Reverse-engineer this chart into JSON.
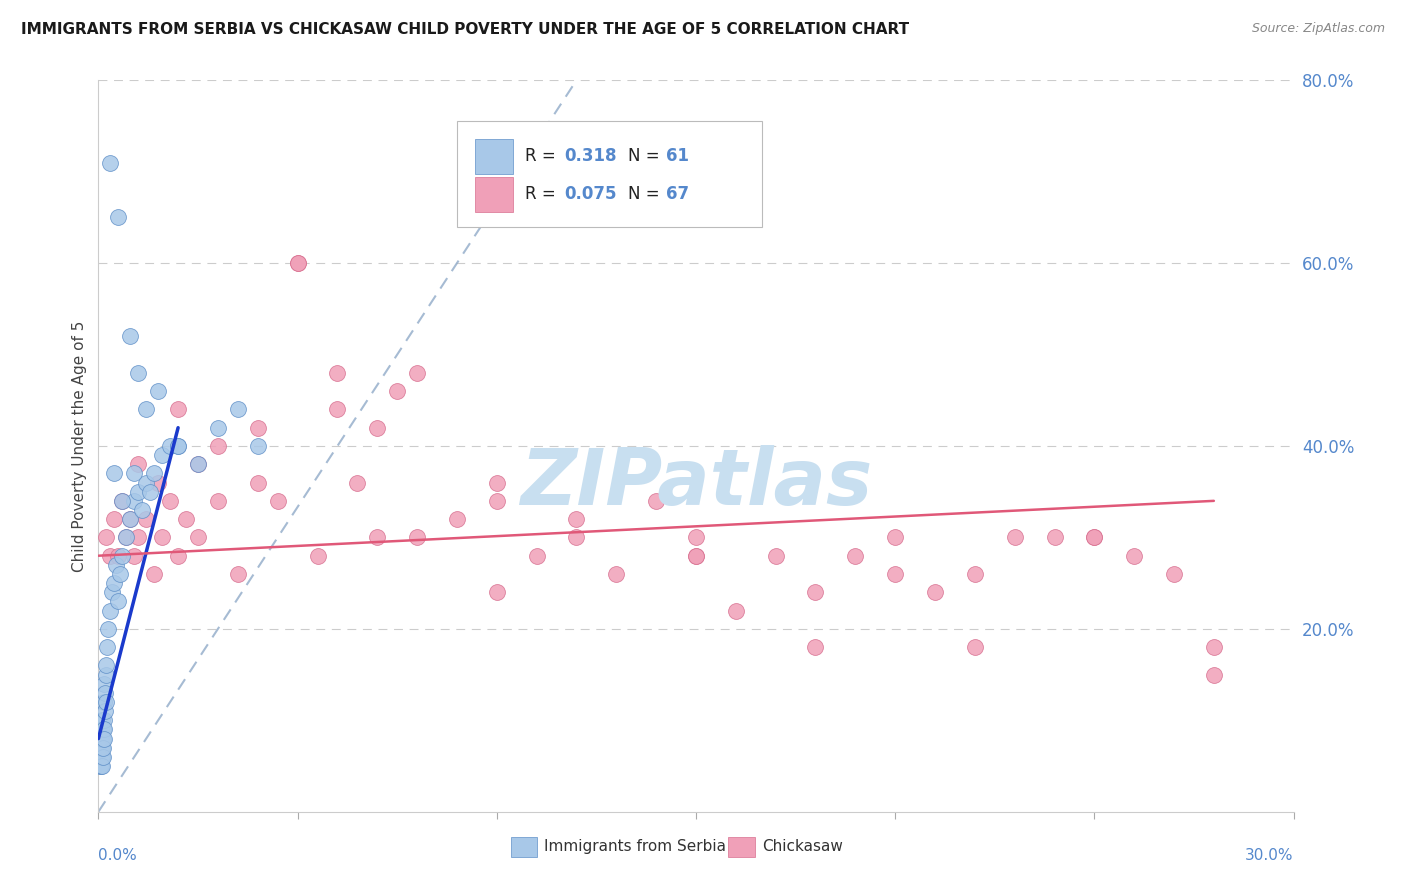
{
  "title": "IMMIGRANTS FROM SERBIA VS CHICKASAW CHILD POVERTY UNDER THE AGE OF 5 CORRELATION CHART",
  "source": "Source: ZipAtlas.com",
  "ylabel": "Child Poverty Under the Age of 5",
  "legend_label1": "Immigrants from Serbia",
  "legend_label2": "Chickasaw",
  "blue_color": "#a8c8e8",
  "blue_edge_color": "#6090c8",
  "pink_color": "#f0a0b8",
  "pink_edge_color": "#d87090",
  "blue_line_color": "#1a3acc",
  "pink_line_color": "#e05878",
  "diag_line_color": "#90aac8",
  "right_tick_color": "#5588cc",
  "watermark_color": "#c8dff0",
  "blue_r": "0.318",
  "blue_n": "61",
  "pink_r": "0.075",
  "pink_n": "67",
  "xlim_min": 0,
  "xlim_max": 30,
  "ylim_min": 0,
  "ylim_max": 80,
  "yticks": [
    20,
    40,
    60,
    80
  ],
  "xtick_positions": [
    0,
    5,
    10,
    15,
    20,
    25,
    30
  ],
  "blue_x": [
    0.05,
    0.05,
    0.05,
    0.06,
    0.06,
    0.07,
    0.07,
    0.08,
    0.08,
    0.09,
    0.1,
    0.1,
    0.1,
    0.11,
    0.11,
    0.12,
    0.12,
    0.13,
    0.13,
    0.14,
    0.15,
    0.15,
    0.16,
    0.17,
    0.18,
    0.19,
    0.2,
    0.22,
    0.25,
    0.3,
    0.35,
    0.4,
    0.45,
    0.5,
    0.55,
    0.6,
    0.7,
    0.8,
    0.9,
    1.0,
    1.1,
    1.2,
    1.4,
    1.6,
    1.8,
    2.0,
    2.5,
    3.0,
    3.5,
    4.0,
    0.3,
    0.5,
    0.8,
    1.0,
    1.2,
    1.5,
    2.0,
    0.4,
    0.6,
    0.9,
    1.3
  ],
  "blue_y": [
    5,
    7,
    8,
    6,
    9,
    5,
    7,
    6,
    8,
    5,
    10,
    7,
    8,
    6,
    9,
    8,
    7,
    10,
    9,
    8,
    12,
    14,
    13,
    11,
    15,
    12,
    16,
    18,
    20,
    22,
    24,
    25,
    27,
    23,
    26,
    28,
    30,
    32,
    34,
    35,
    33,
    36,
    37,
    39,
    40,
    40,
    38,
    42,
    44,
    40,
    71,
    65,
    52,
    48,
    44,
    46,
    40,
    37,
    34,
    37,
    35
  ],
  "pink_x": [
    0.2,
    0.3,
    0.4,
    0.5,
    0.6,
    0.7,
    0.8,
    0.9,
    1.0,
    1.2,
    1.4,
    1.6,
    1.8,
    2.0,
    2.2,
    2.5,
    3.0,
    3.5,
    4.0,
    4.5,
    5.0,
    5.5,
    6.0,
    6.5,
    7.0,
    7.5,
    8.0,
    9.0,
    10.0,
    11.0,
    12.0,
    13.0,
    14.0,
    15.0,
    16.0,
    17.0,
    18.0,
    19.0,
    20.0,
    21.0,
    22.0,
    23.0,
    24.0,
    25.0,
    26.0,
    27.0,
    28.0,
    1.0,
    1.5,
    2.0,
    2.5,
    3.0,
    4.0,
    5.0,
    6.0,
    7.0,
    8.0,
    10.0,
    12.0,
    15.0,
    18.0,
    22.0,
    25.0,
    28.0,
    10.0,
    15.0,
    20.0
  ],
  "pink_y": [
    30,
    28,
    32,
    28,
    34,
    30,
    32,
    28,
    30,
    32,
    26,
    30,
    34,
    28,
    32,
    30,
    34,
    26,
    36,
    34,
    60,
    28,
    44,
    36,
    30,
    46,
    30,
    32,
    34,
    28,
    30,
    26,
    34,
    28,
    22,
    28,
    24,
    28,
    26,
    24,
    26,
    30,
    30,
    30,
    28,
    26,
    15,
    38,
    36,
    44,
    38,
    40,
    42,
    60,
    48,
    42,
    48,
    36,
    32,
    28,
    18,
    18,
    30,
    18,
    24,
    30,
    30
  ],
  "blue_trend_x0": 0.0,
  "blue_trend_y0": 8.0,
  "blue_trend_x1": 2.0,
  "blue_trend_y1": 42.0,
  "pink_trend_x0": 0.0,
  "pink_trend_y0": 28.0,
  "pink_trend_x1": 28.0,
  "pink_trend_y1": 34.0,
  "diag_x0": 0.0,
  "diag_y0": 0.0,
  "diag_x1": 12.0,
  "diag_y1": 80.0
}
